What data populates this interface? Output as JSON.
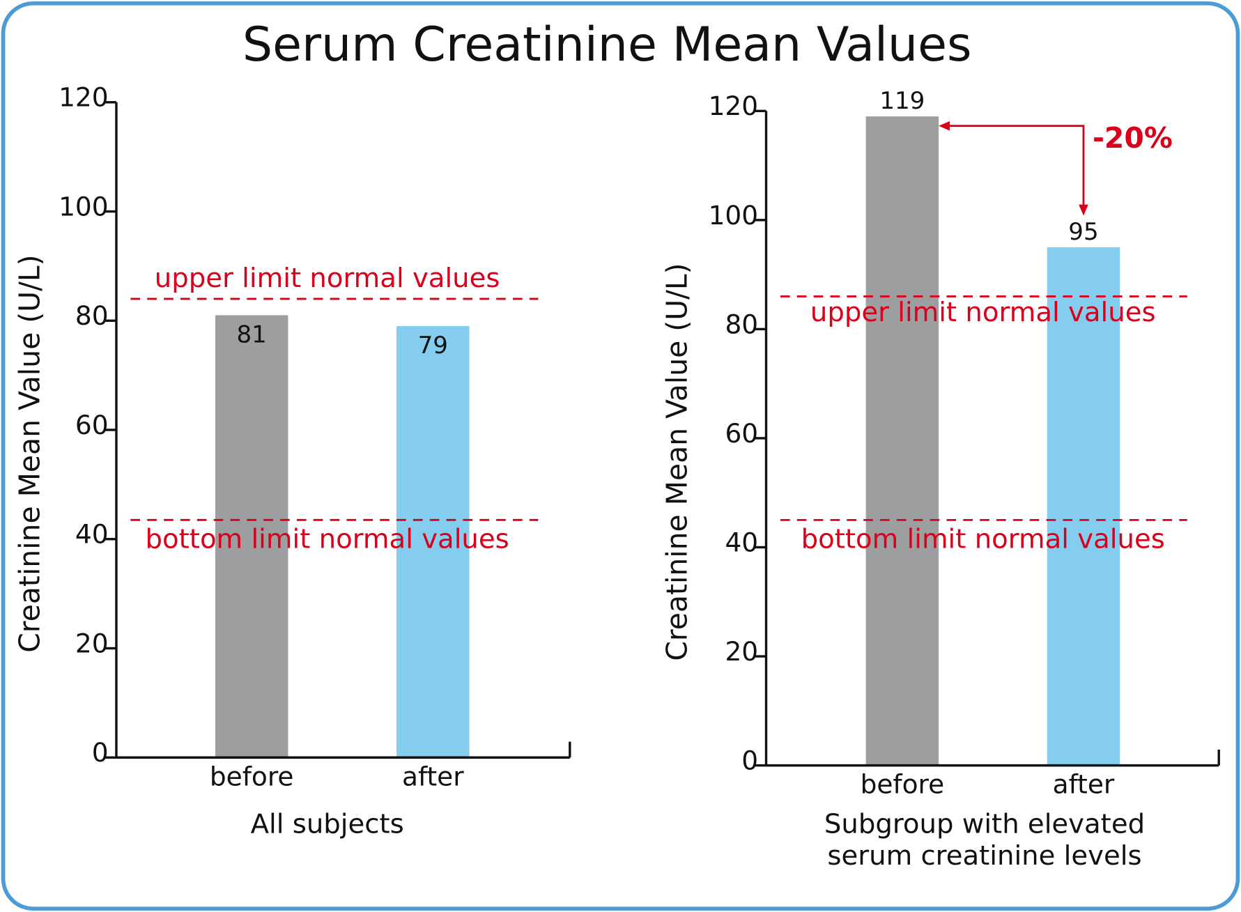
{
  "title": "Serum Creatinine Mean Values",
  "chart_data": [
    {
      "type": "bar",
      "categories": [
        "before",
        "after"
      ],
      "values": [
        81,
        79
      ],
      "colors": [
        "#9d9ea0",
        "#84cdee"
      ],
      "ylim": [
        0,
        120
      ],
      "yticks": [
        0,
        20,
        40,
        60,
        80,
        100,
        120
      ],
      "y_label": "Creatinine Mean Value (U/L)",
      "x_label": [
        "All subjects"
      ],
      "ref_lines": [
        {
          "value": 84,
          "label": "upper limit normal values"
        },
        {
          "value": 43.5,
          "label": "bottom limit normal values"
        }
      ],
      "ref_color": "#d9001b"
    },
    {
      "type": "bar",
      "categories": [
        "before",
        "after"
      ],
      "values": [
        119,
        95
      ],
      "colors": [
        "#9d9ea0",
        "#84cdee"
      ],
      "ylim": [
        0,
        120
      ],
      "yticks": [
        0,
        20,
        40,
        60,
        80,
        100,
        120
      ],
      "y_label": "Creatinine Mean Value (U/L)",
      "x_label": [
        "Subgroup with elevated",
        "serum creatinine levels"
      ],
      "ref_lines": [
        {
          "value": 86,
          "label": "upper limit normal values"
        },
        {
          "value": 45,
          "label": "bottom limit normal values"
        }
      ],
      "ref_color": "#d9001b",
      "annotation": "-20%"
    }
  ]
}
